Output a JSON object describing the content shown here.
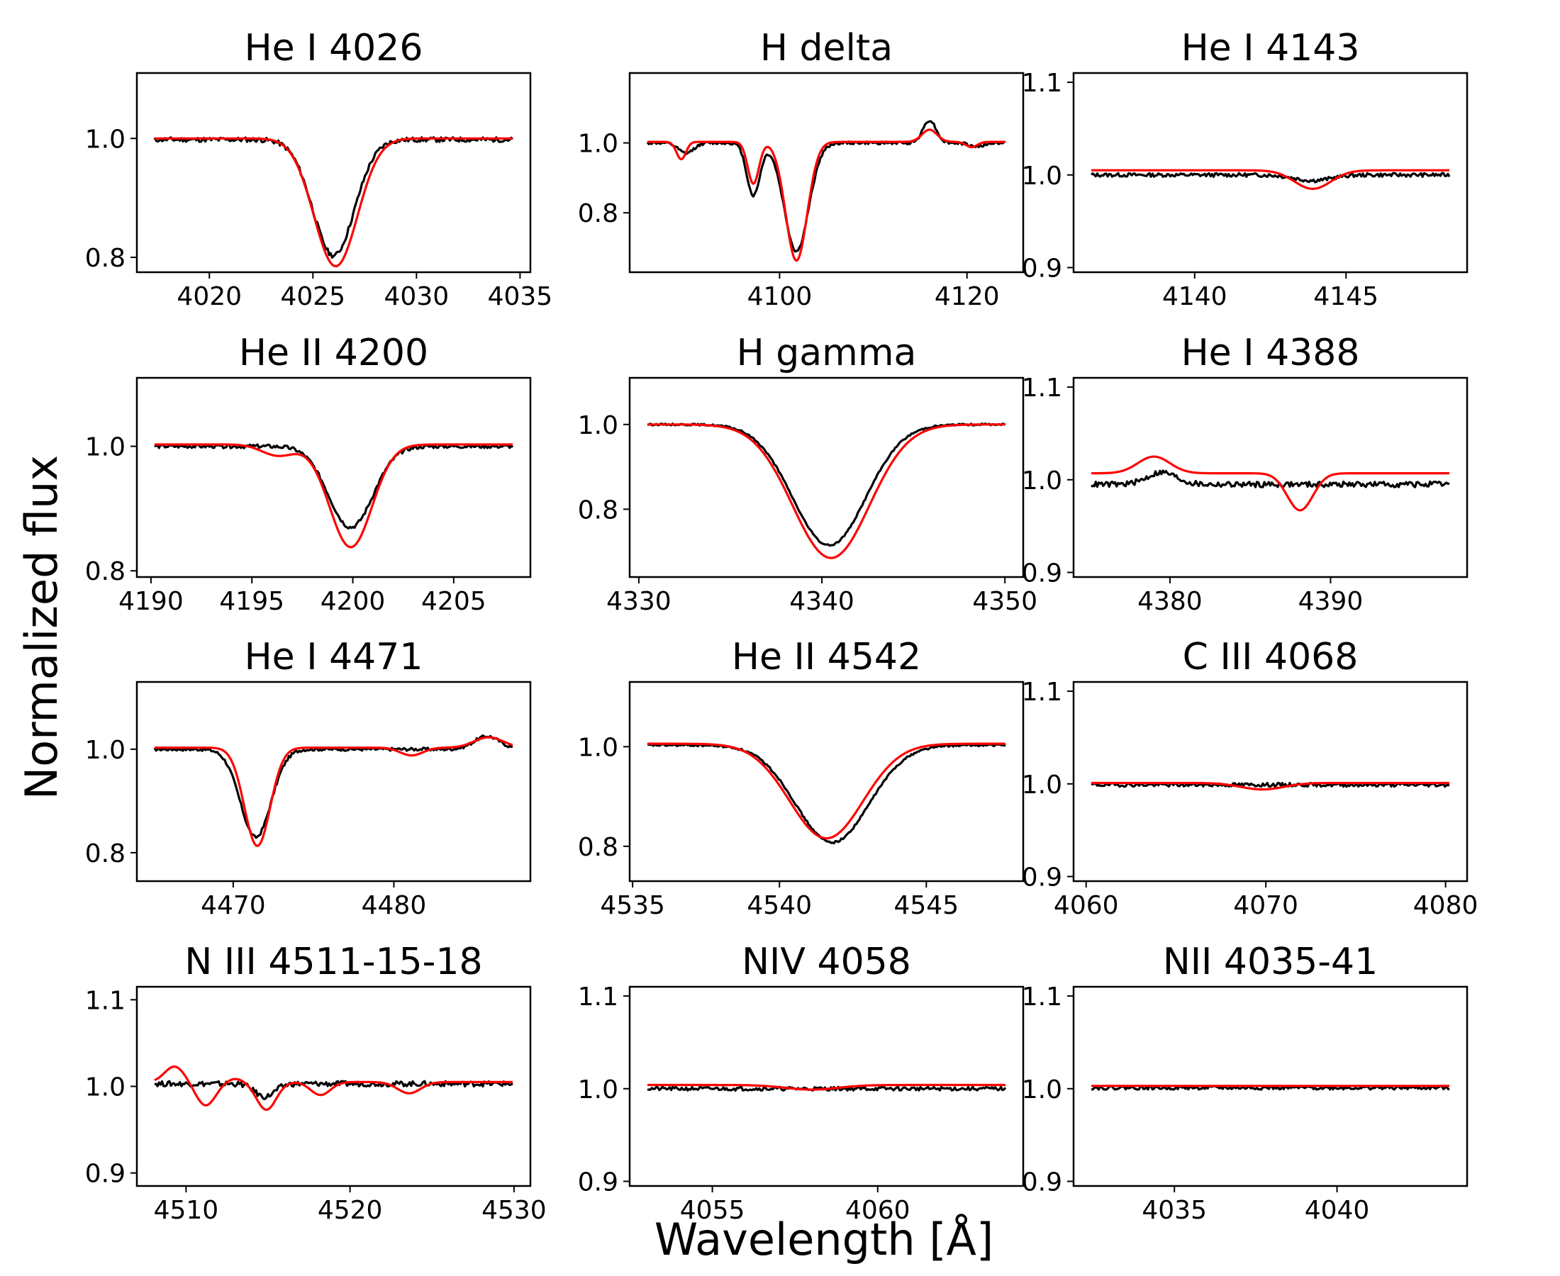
{
  "figure": {
    "ylabel": "Normalized flux",
    "xlabel": "Wavelength [Å]",
    "colors": {
      "observed": "#000000",
      "model": "#ff0000",
      "frame": "#000000",
      "background": "#ffffff"
    }
  },
  "chart_data": [
    {
      "type": "line",
      "title": "He I 4026",
      "xlim": [
        4016.5,
        4035.5
      ],
      "ylim": [
        0.775,
        1.11
      ],
      "xticks": [
        4020,
        4025,
        4030,
        4035
      ],
      "yticks": [
        0.8,
        1.0
      ],
      "xticklabels": [
        "4020",
        "4025",
        "4030",
        "4035"
      ],
      "yticklabels": [
        "0.8",
        "1.0"
      ],
      "series": [
        {
          "name": "observed",
          "color": "#000000",
          "noise": 0.004,
          "seed": 11,
          "continuum": 0.998,
          "lines": [
            {
              "c": 4026.0,
              "d": 0.195,
              "w": 1.0
            }
          ]
        },
        {
          "name": "model",
          "color": "#ff0000",
          "noise": 0,
          "seed": 0,
          "continuum": 1.0,
          "lines": [
            {
              "c": 4026.1,
              "d": 0.215,
              "w": 1.05
            }
          ]
        }
      ]
    },
    {
      "type": "line",
      "title": "H delta",
      "xlim": [
        4084,
        4126
      ],
      "ylim": [
        0.63,
        1.2
      ],
      "xticks": [
        4100,
        4120
      ],
      "yticks": [
        0.8,
        1.0
      ],
      "xticklabels": [
        "4100",
        "4120"
      ],
      "yticklabels": [
        "0.8",
        "1.0"
      ],
      "series": [
        {
          "name": "observed",
          "color": "#000000",
          "noise": 0.004,
          "seed": 12,
          "continuum": 1.0,
          "lines": [
            {
              "c": 4101.8,
              "d": 0.31,
              "w": 1.3
            },
            {
              "c": 4097.2,
              "d": 0.15,
              "w": 0.7
            },
            {
              "c": 4116.0,
              "d": -0.065,
              "w": 0.7
            },
            {
              "c": 4090.0,
              "d": 0.03,
              "w": 0.8
            },
            {
              "c": 4121.0,
              "d": 0.01,
              "w": 0.8
            }
          ]
        },
        {
          "name": "model",
          "color": "#ff0000",
          "noise": 0,
          "seed": 0,
          "continuum": 1.003,
          "lines": [
            {
              "c": 4101.8,
              "d": 0.34,
              "w": 1.15
            },
            {
              "c": 4097.2,
              "d": 0.12,
              "w": 0.6
            },
            {
              "c": 4089.5,
              "d": 0.05,
              "w": 0.5
            },
            {
              "c": 4116.0,
              "d": -0.035,
              "w": 0.8
            },
            {
              "c": 4120.5,
              "d": 0.015,
              "w": 0.6
            }
          ]
        }
      ]
    },
    {
      "type": "line",
      "title": "He I 4143",
      "xlim": [
        4136,
        4149
      ],
      "ylim": [
        0.895,
        1.11
      ],
      "xticks": [
        4140,
        4145
      ],
      "yticks": [
        0.9,
        1.0,
        1.1
      ],
      "xticklabels": [
        "4140",
        "4145"
      ],
      "yticklabels": [
        "0.9",
        "1.0",
        "1.1"
      ],
      "series": [
        {
          "name": "observed",
          "color": "#000000",
          "noise": 0.002,
          "seed": 13,
          "continuum": 1.0,
          "lines": [
            {
              "c": 4143.9,
              "d": 0.006,
              "w": 0.6
            }
          ]
        },
        {
          "name": "model",
          "color": "#ff0000",
          "noise": 0,
          "seed": 0,
          "continuum": 1.005,
          "lines": [
            {
              "c": 4143.9,
              "d": 0.02,
              "w": 0.6
            }
          ]
        }
      ]
    },
    {
      "type": "line",
      "title": "He II 4200",
      "xlim": [
        4189.3,
        4208.8
      ],
      "ylim": [
        0.79,
        1.11
      ],
      "xticks": [
        4190,
        4195,
        4200,
        4205
      ],
      "yticks": [
        0.8,
        1.0
      ],
      "xticklabels": [
        "4190",
        "4195",
        "4200",
        "4205"
      ],
      "yticklabels": [
        "0.8",
        "1.0"
      ],
      "series": [
        {
          "name": "observed",
          "color": "#000000",
          "noise": 0.003,
          "seed": 14,
          "continuum": 1.0,
          "lines": [
            {
              "c": 4199.9,
              "d": 0.13,
              "w": 1.1
            }
          ]
        },
        {
          "name": "model",
          "color": "#ff0000",
          "noise": 0,
          "seed": 0,
          "continuum": 1.003,
          "lines": [
            {
              "c": 4199.9,
              "d": 0.165,
              "w": 1.05
            },
            {
              "c": 4196.3,
              "d": 0.018,
              "w": 0.8
            }
          ]
        }
      ]
    },
    {
      "type": "line",
      "title": "H gamma",
      "xlim": [
        4329.5,
        4351.0
      ],
      "ylim": [
        0.64,
        1.11
      ],
      "xticks": [
        4330,
        4340,
        4350
      ],
      "yticks": [
        0.8,
        1.0
      ],
      "xticklabels": [
        "4330",
        "4340",
        "4350"
      ],
      "yticklabels": [
        "0.8",
        "1.0"
      ],
      "series": [
        {
          "name": "observed",
          "color": "#000000",
          "noise": 0.002,
          "seed": 15,
          "continuum": 1.0,
          "lines": [
            {
              "c": 4340.4,
              "d": 0.285,
              "w": 2.0
            }
          ]
        },
        {
          "name": "model",
          "color": "#ff0000",
          "noise": 0,
          "seed": 0,
          "continuum": 1.0,
          "lines": [
            {
              "c": 4340.5,
              "d": 0.315,
              "w": 2.1
            }
          ]
        }
      ]
    },
    {
      "type": "line",
      "title": "He I 4388",
      "xlim": [
        4374.0,
        4398.5
      ],
      "ylim": [
        0.895,
        1.11
      ],
      "xticks": [
        4380,
        4390
      ],
      "yticks": [
        0.9,
        1.0,
        1.1
      ],
      "xticklabels": [
        "4380",
        "4390"
      ],
      "yticklabels": [
        "0.9",
        "1.0",
        "1.1"
      ],
      "series": [
        {
          "name": "observed",
          "color": "#000000",
          "noise": 0.003,
          "seed": 16,
          "continuum": 0.995,
          "lines": [
            {
              "c": 4379.5,
              "d": -0.013,
              "w": 0.9
            }
          ]
        },
        {
          "name": "model",
          "color": "#ff0000",
          "noise": 0,
          "seed": 0,
          "continuum": 1.007,
          "lines": [
            {
              "c": 4379.0,
              "d": -0.018,
              "w": 1.0
            },
            {
              "c": 4388.1,
              "d": 0.04,
              "w": 0.8
            }
          ]
        }
      ]
    },
    {
      "type": "line",
      "title": "He I 4471",
      "xlim": [
        4464.0,
        4488.5
      ],
      "ylim": [
        0.745,
        1.13
      ],
      "xticks": [
        4470,
        4480
      ],
      "yticks": [
        0.8,
        1.0
      ],
      "xticklabels": [
        "4470",
        "4480"
      ],
      "yticklabels": [
        "0.8",
        "1.0"
      ],
      "series": [
        {
          "name": "observed",
          "color": "#000000",
          "noise": 0.003,
          "seed": 17,
          "continuum": 1.0,
          "lines": [
            {
              "c": 4471.4,
              "d": 0.17,
              "w": 0.95
            },
            {
              "c": 4485.8,
              "d": -0.025,
              "w": 0.8
            }
          ]
        },
        {
          "name": "model",
          "color": "#ff0000",
          "noise": 0,
          "seed": 0,
          "continuum": 1.003,
          "lines": [
            {
              "c": 4471.5,
              "d": 0.19,
              "w": 0.8
            },
            {
              "c": 4481.1,
              "d": 0.015,
              "w": 0.7
            },
            {
              "c": 4485.9,
              "d": -0.02,
              "w": 0.9
            }
          ]
        }
      ]
    },
    {
      "type": "line",
      "title": "He II 4542",
      "xlim": [
        4534.9,
        4548.3
      ],
      "ylim": [
        0.73,
        1.13
      ],
      "xticks": [
        4535,
        4540,
        4545
      ],
      "yticks": [
        0.8,
        1.0
      ],
      "xticklabels": [
        "4535",
        "4540",
        "4545"
      ],
      "yticklabels": [
        "0.8",
        "1.0"
      ],
      "series": [
        {
          "name": "observed",
          "color": "#000000",
          "noise": 0.002,
          "seed": 18,
          "continuum": 1.003,
          "lines": [
            {
              "c": 4541.8,
              "d": 0.195,
              "w": 1.25
            }
          ]
        },
        {
          "name": "model",
          "color": "#ff0000",
          "noise": 0,
          "seed": 0,
          "continuum": 1.006,
          "lines": [
            {
              "c": 4541.6,
              "d": 0.19,
              "w": 1.25
            }
          ]
        }
      ]
    },
    {
      "type": "line",
      "title": "C III 4068",
      "xlim": [
        4059.3,
        4081.2
      ],
      "ylim": [
        0.895,
        1.11
      ],
      "xticks": [
        4060,
        4070,
        4080
      ],
      "yticks": [
        0.9,
        1.0,
        1.1
      ],
      "xticklabels": [
        "4060",
        "4070",
        "4080"
      ],
      "yticklabels": [
        "0.9",
        "1.0",
        "1.1"
      ],
      "series": [
        {
          "name": "observed",
          "color": "#000000",
          "noise": 0.002,
          "seed": 19,
          "continuum": 0.999,
          "lines": []
        },
        {
          "name": "model",
          "color": "#ff0000",
          "noise": 0,
          "seed": 0,
          "continuum": 1.001,
          "lines": [
            {
              "c": 4069.8,
              "d": 0.007,
              "w": 1.2
            }
          ]
        }
      ]
    },
    {
      "type": "line",
      "title": "N III 4511-15-18",
      "xlim": [
        4507.0,
        4531.0
      ],
      "ylim": [
        0.885,
        1.115
      ],
      "xticks": [
        4510,
        4520,
        4530
      ],
      "yticks": [
        0.9,
        1.0,
        1.1
      ],
      "xticklabels": [
        "4510",
        "4520",
        "4530"
      ],
      "yticklabels": [
        "0.9",
        "1.0",
        "1.1"
      ],
      "series": [
        {
          "name": "observed",
          "color": "#000000",
          "noise": 0.003,
          "seed": 20,
          "continuum": 1.003,
          "lines": [
            {
              "c": 4514.8,
              "d": 0.015,
              "w": 0.6
            }
          ]
        },
        {
          "name": "model",
          "color": "#ff0000",
          "noise": 0,
          "seed": 0,
          "continuum": 1.005,
          "lines": [
            {
              "c": 4509.3,
              "d": -0.018,
              "w": 0.6
            },
            {
              "c": 4511.2,
              "d": 0.027,
              "w": 0.6
            },
            {
              "c": 4513.0,
              "d": -0.004,
              "w": 0.5
            },
            {
              "c": 4514.9,
              "d": 0.032,
              "w": 0.6
            },
            {
              "c": 4518.2,
              "d": 0.015,
              "w": 0.6
            },
            {
              "c": 4523.6,
              "d": 0.013,
              "w": 0.7
            }
          ]
        }
      ]
    },
    {
      "type": "line",
      "title": "NIV 4058",
      "xlim": [
        4052.5,
        4064.4
      ],
      "ylim": [
        0.895,
        1.11
      ],
      "xticks": [
        4055,
        4060
      ],
      "yticks": [
        0.9,
        1.0,
        1.1
      ],
      "xticklabels": [
        "4055",
        "4060"
      ],
      "yticklabels": [
        "0.9",
        "1.0",
        "1.1"
      ],
      "series": [
        {
          "name": "observed",
          "color": "#000000",
          "noise": 0.002,
          "seed": 21,
          "continuum": 1.0,
          "lines": []
        },
        {
          "name": "model",
          "color": "#ff0000",
          "noise": 0,
          "seed": 0,
          "continuum": 1.004,
          "lines": [
            {
              "c": 4058.0,
              "d": 0.005,
              "w": 0.8
            }
          ]
        }
      ]
    },
    {
      "type": "line",
      "title": "NII 4035-41",
      "xlim": [
        4031.9,
        4044.0
      ],
      "ylim": [
        0.895,
        1.11
      ],
      "xticks": [
        4035,
        4040
      ],
      "yticks": [
        0.9,
        1.0,
        1.1
      ],
      "xticklabels": [
        "4035",
        "4040"
      ],
      "yticklabels": [
        "0.9",
        "1.0",
        "1.1"
      ],
      "series": [
        {
          "name": "observed",
          "color": "#000000",
          "noise": 0.002,
          "seed": 22,
          "continuum": 1.001,
          "lines": []
        },
        {
          "name": "model",
          "color": "#ff0000",
          "noise": 0,
          "seed": 0,
          "continuum": 1.003,
          "lines": []
        }
      ]
    }
  ]
}
